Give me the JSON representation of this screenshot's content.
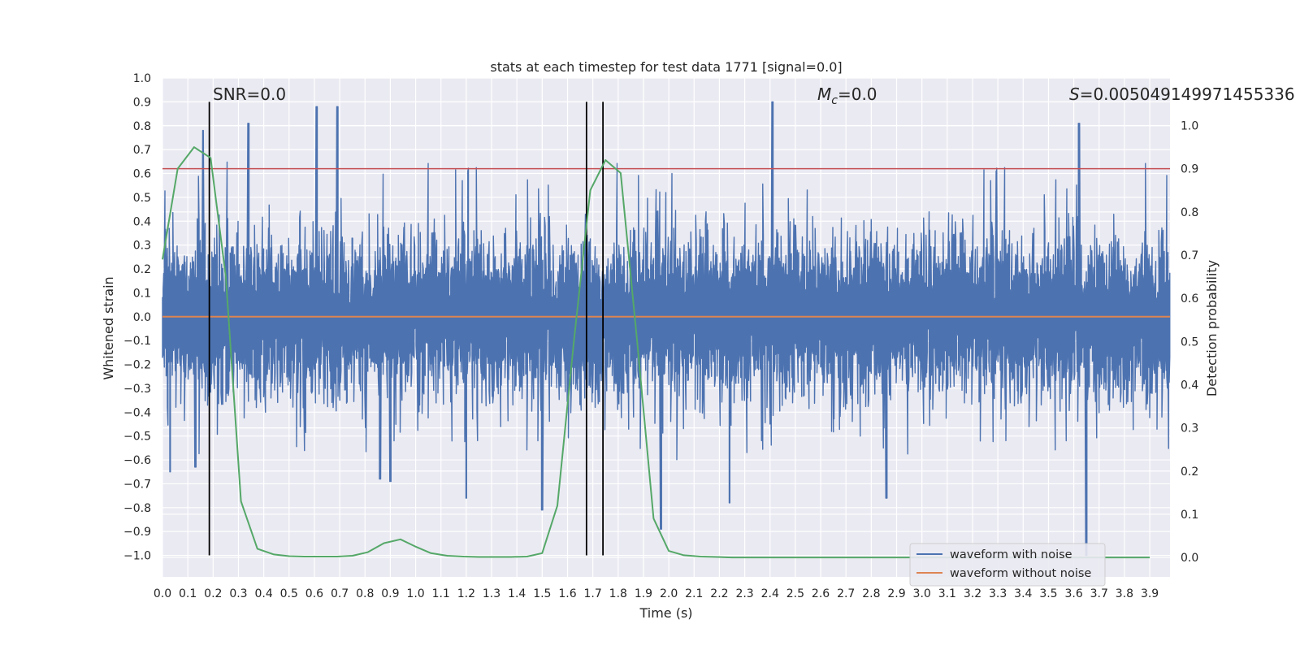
{
  "chart_data": {
    "type": "line",
    "title": "stats at each timestep for test data 1771 [signal=0.0]",
    "xlabel": "Time (s)",
    "ylabel": "Whitened strain",
    "y2label": "Detection probability",
    "xlim": [
      0.0,
      3.98
    ],
    "ylim": [
      -1.09,
      1.0
    ],
    "y2lim": [
      -0.045,
      1.11
    ],
    "xticks": [
      "0.0",
      "0.1",
      "0.2",
      "0.3",
      "0.4",
      "0.5",
      "0.6",
      "0.7",
      "0.8",
      "0.9",
      "1.0",
      "1.1",
      "1.2",
      "1.3",
      "1.4",
      "1.5",
      "1.6",
      "1.7",
      "1.8",
      "1.9",
      "2.0",
      "2.1",
      "2.2",
      "2.3",
      "2.4",
      "2.5",
      "2.6",
      "2.7",
      "2.8",
      "2.9",
      "3.0",
      "3.1",
      "3.2",
      "3.3",
      "3.4",
      "3.5",
      "3.6",
      "3.7",
      "3.8",
      "3.9"
    ],
    "yticks": [
      "1.0",
      "0.9",
      "0.8",
      "0.7",
      "0.6",
      "0.5",
      "0.4",
      "0.3",
      "0.2",
      "0.1",
      "0.0",
      "−0.1",
      "−0.2",
      "−0.3",
      "−0.4",
      "−0.5",
      "−0.6",
      "−0.7",
      "−0.8",
      "−0.9",
      "−1.0"
    ],
    "y2ticks": [
      "1.0",
      "0.9",
      "0.8",
      "0.7",
      "0.6",
      "0.5",
      "0.4",
      "0.3",
      "0.2",
      "0.1",
      "0.0"
    ],
    "grid": true,
    "annotations": {
      "snr_label": "SNR=0.0",
      "mc_symbol": "M",
      "mc_subscript": "c",
      "mc_value": "=0.0",
      "s_symbol": "S",
      "s_value": "=0.005049149971455336"
    },
    "threshold_line": {
      "axis": "right",
      "value": 0.9,
      "color": "#c44e52"
    },
    "vertical_markers": {
      "x": [
        0.185,
        1.675,
        1.74
      ],
      "y_top": 0.9,
      "y_bottom": -1.0,
      "color": "#000000"
    },
    "noise_series": {
      "name": "waveform with noise",
      "color": "#4c72b0",
      "x_start": 0.0,
      "x_end": 3.98,
      "approx_band": [
        -0.45,
        0.45
      ],
      "spikes": [
        {
          "x": 0.03,
          "y": -0.65
        },
        {
          "x": 0.13,
          "y": -0.63
        },
        {
          "x": 0.16,
          "y": 0.78
        },
        {
          "x": 0.34,
          "y": 0.81
        },
        {
          "x": 0.61,
          "y": 0.88
        },
        {
          "x": 0.69,
          "y": 0.88
        },
        {
          "x": 0.86,
          "y": -0.68
        },
        {
          "x": 0.9,
          "y": -0.69
        },
        {
          "x": 1.2,
          "y": -0.76
        },
        {
          "x": 1.5,
          "y": -0.81
        },
        {
          "x": 1.97,
          "y": -0.89
        },
        {
          "x": 2.24,
          "y": -0.78
        },
        {
          "x": 2.41,
          "y": 0.9
        },
        {
          "x": 2.86,
          "y": -0.76
        },
        {
          "x": 3.62,
          "y": 0.81
        },
        {
          "x": 3.65,
          "y": -1.0
        }
      ]
    },
    "clean_series": {
      "name": "waveform without noise",
      "color": "#dd8452",
      "y": 0.0
    },
    "probability_series": {
      "name": "Detection probability",
      "color": "#55a868",
      "x": [
        0.0,
        0.06,
        0.125,
        0.19,
        0.25,
        0.31,
        0.375,
        0.44,
        0.5,
        0.56,
        0.625,
        0.69,
        0.75,
        0.81,
        0.875,
        0.94,
        1.0,
        1.06,
        1.125,
        1.19,
        1.25,
        1.31,
        1.375,
        1.44,
        1.5,
        1.56,
        1.625,
        1.69,
        1.75,
        1.81,
        1.875,
        1.94,
        2.0,
        2.06,
        2.125,
        2.19,
        2.25,
        2.5,
        3.0,
        3.5,
        3.9
      ],
      "y": [
        0.69,
        0.9,
        0.95,
        0.925,
        0.65,
        0.13,
        0.02,
        0.007,
        0.003,
        0.002,
        0.002,
        0.002,
        0.004,
        0.012,
        0.033,
        0.042,
        0.025,
        0.01,
        0.004,
        0.002,
        0.001,
        0.001,
        0.001,
        0.002,
        0.01,
        0.12,
        0.5,
        0.85,
        0.92,
        0.89,
        0.5,
        0.09,
        0.015,
        0.005,
        0.002,
        0.001,
        0.0,
        0.0,
        0.0,
        0.0,
        0.0
      ]
    },
    "legend": {
      "position": "lower-right",
      "entries": [
        {
          "label": "waveform with noise",
          "color": "#4c72b0"
        },
        {
          "label": "waveform without noise",
          "color": "#dd8452"
        }
      ]
    }
  }
}
